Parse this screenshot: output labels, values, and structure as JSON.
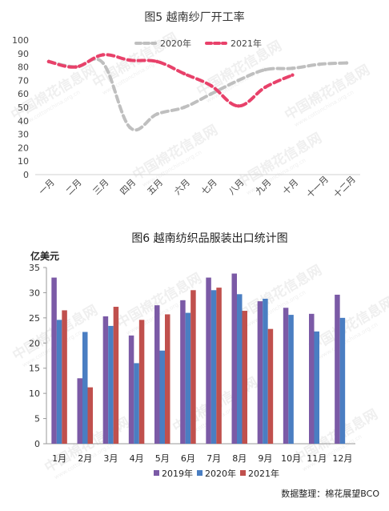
{
  "chart_data": [
    {
      "type": "line",
      "title": "图5 越南纱厂开工率",
      "categories": [
        "一月",
        "二月",
        "三月",
        "四月",
        "五月",
        "六月",
        "七月",
        "八月",
        "九月",
        "十月",
        "十一月",
        "十二月"
      ],
      "ylim": [
        0,
        100
      ],
      "yticks": [
        0,
        10,
        20,
        30,
        40,
        50,
        60,
        70,
        80,
        90,
        100
      ],
      "grid": false,
      "legend": "top",
      "series": [
        {
          "name": "2020年",
          "color": "#bfbfbf",
          "style": "dashed",
          "values": [
            84,
            80,
            83,
            35,
            45,
            50,
            60,
            70,
            78,
            79,
            82,
            83
          ]
        },
        {
          "name": "2021年",
          "color": "#e8416a",
          "style": "dashed",
          "values": [
            84,
            80,
            89,
            85,
            84,
            75,
            66,
            51,
            65,
            74,
            null,
            null
          ]
        }
      ]
    },
    {
      "type": "bar",
      "title": "图6 越南纺织品服装出口统计图",
      "ylabel": "亿美元",
      "categories": [
        "1月",
        "2月",
        "3月",
        "4月",
        "5月",
        "6月",
        "7月",
        "8月",
        "9月",
        "10月",
        "11月",
        "12月"
      ],
      "ylim": [
        0,
        35
      ],
      "yticks": [
        0,
        5,
        10,
        15,
        20,
        25,
        30,
        35
      ],
      "grid": false,
      "legend": "bottom",
      "series": [
        {
          "name": "2019年",
          "color": "#7b5aa6",
          "values": [
            33,
            13,
            25.3,
            21.5,
            27.5,
            28.5,
            33,
            33.8,
            28.3,
            27,
            25.8,
            29.6
          ]
        },
        {
          "name": "2020年",
          "color": "#4a7ec2",
          "values": [
            24.6,
            22.2,
            23.4,
            16,
            18.5,
            26,
            30.5,
            29.7,
            28.8,
            25.6,
            22.3,
            25
          ]
        },
        {
          "name": "2021年",
          "color": "#c0504d",
          "values": [
            26.5,
            11.2,
            27.2,
            24.6,
            25.7,
            30.5,
            31,
            26.4,
            22.8,
            null,
            null,
            null
          ]
        }
      ]
    }
  ],
  "source_note": "数据整理：棉花展望BCO",
  "watermark": {
    "brand": "中国棉花信息网",
    "url": "www.cottonchina.org.cn"
  }
}
